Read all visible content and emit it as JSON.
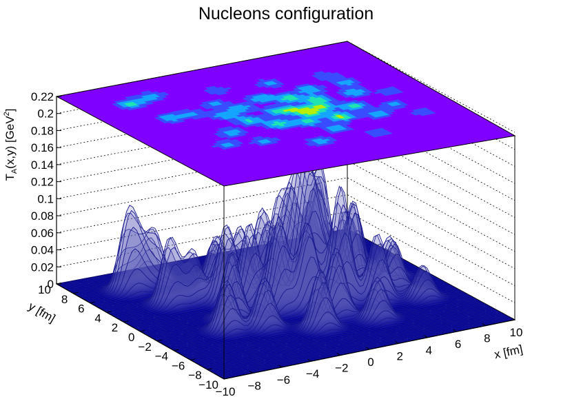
{
  "chart_data": {
    "type": "surface3d",
    "title": "Nucleons configuration",
    "xlabel": "x [fm]",
    "ylabel": "y [fm]",
    "zlabel_main": "T",
    "zlabel_sub": "A",
    "zlabel_mid": "(x,y) [GeV",
    "zlabel_sup": "2",
    "zlabel_end": "]",
    "xlim": [
      -10,
      10
    ],
    "ylim": [
      -10,
      10
    ],
    "zlim": [
      0,
      0.22
    ],
    "x_ticks": [
      "−10",
      "−8",
      "−6",
      "−4",
      "−2",
      "0",
      "2",
      "4",
      "6",
      "8",
      "10"
    ],
    "y_ticks": [
      "−10",
      "−8",
      "−6",
      "−4",
      "−2",
      "0",
      "2",
      "4",
      "6",
      "8",
      "10"
    ],
    "z_ticks": [
      "0",
      "0.02",
      "0.04",
      "0.06",
      "0.08",
      "0.1",
      "0.12",
      "0.14",
      "0.16",
      "0.18",
      "0.2",
      "0.22"
    ],
    "grid": true,
    "top_projection": "color map of T_A(x,y) drawn on the top face",
    "nucleon_width_fm": 0.55,
    "nucleons": [
      {
        "x": -7.0,
        "y": 6.6,
        "t": 0.09
      },
      {
        "x": -6.0,
        "y": 6.8,
        "t": 0.05
      },
      {
        "x": -4.9,
        "y": 7.2,
        "t": 0.06
      },
      {
        "x": -6.1,
        "y": 3.2,
        "t": 0.08
      },
      {
        "x": -4.6,
        "y": 3.1,
        "t": 0.06
      },
      {
        "x": -3.0,
        "y": 1.9,
        "t": 0.09
      },
      {
        "x": -1.6,
        "y": 2.6,
        "t": 0.08
      },
      {
        "x": -2.6,
        "y": 4.0,
        "t": 0.06
      },
      {
        "x": -2.3,
        "y": 0.3,
        "t": 0.1
      },
      {
        "x": -4.3,
        "y": -1.0,
        "t": 0.08
      },
      {
        "x": -3.4,
        "y": -3.4,
        "t": 0.06
      },
      {
        "x": -5.6,
        "y": -2.7,
        "t": 0.06
      },
      {
        "x": -1.1,
        "y": -1.1,
        "t": 0.11
      },
      {
        "x": 0.5,
        "y": -1.7,
        "t": 0.1
      },
      {
        "x": 0.0,
        "y": 1.0,
        "t": 0.11
      },
      {
        "x": 1.1,
        "y": 0.5,
        "t": 0.13
      },
      {
        "x": 1.5,
        "y": -0.5,
        "t": 0.12
      },
      {
        "x": 2.6,
        "y": 0.3,
        "t": 0.14
      },
      {
        "x": 3.1,
        "y": 1.6,
        "t": 0.12
      },
      {
        "x": 1.8,
        "y": 2.6,
        "t": 0.12
      },
      {
        "x": 0.4,
        "y": 3.5,
        "t": 0.09
      },
      {
        "x": 2.7,
        "y": -1.9,
        "t": 0.14
      },
      {
        "x": 3.6,
        "y": 3.4,
        "t": 0.09
      },
      {
        "x": 4.3,
        "y": -0.6,
        "t": 0.11
      },
      {
        "x": 5.6,
        "y": 1.6,
        "t": 0.09
      },
      {
        "x": 4.8,
        "y": -2.6,
        "t": 0.08
      },
      {
        "x": 1.4,
        "y": -3.6,
        "t": 0.08
      },
      {
        "x": 6.1,
        "y": 3.4,
        "t": 0.07
      },
      {
        "x": 6.5,
        "y": -1.6,
        "t": 0.06
      },
      {
        "x": 7.5,
        "y": 0.6,
        "t": 0.05
      },
      {
        "x": 5.7,
        "y": 5.1,
        "t": 0.05
      },
      {
        "x": 7.3,
        "y": -3.7,
        "t": 0.04
      },
      {
        "x": -0.6,
        "y": -5.2,
        "t": 0.07
      },
      {
        "x": 2.1,
        "y": 5.6,
        "t": 0.06
      },
      {
        "x": 3.1,
        "y": -5.6,
        "t": 0.05
      },
      {
        "x": -1.2,
        "y": 6.1,
        "t": 0.05
      }
    ]
  }
}
